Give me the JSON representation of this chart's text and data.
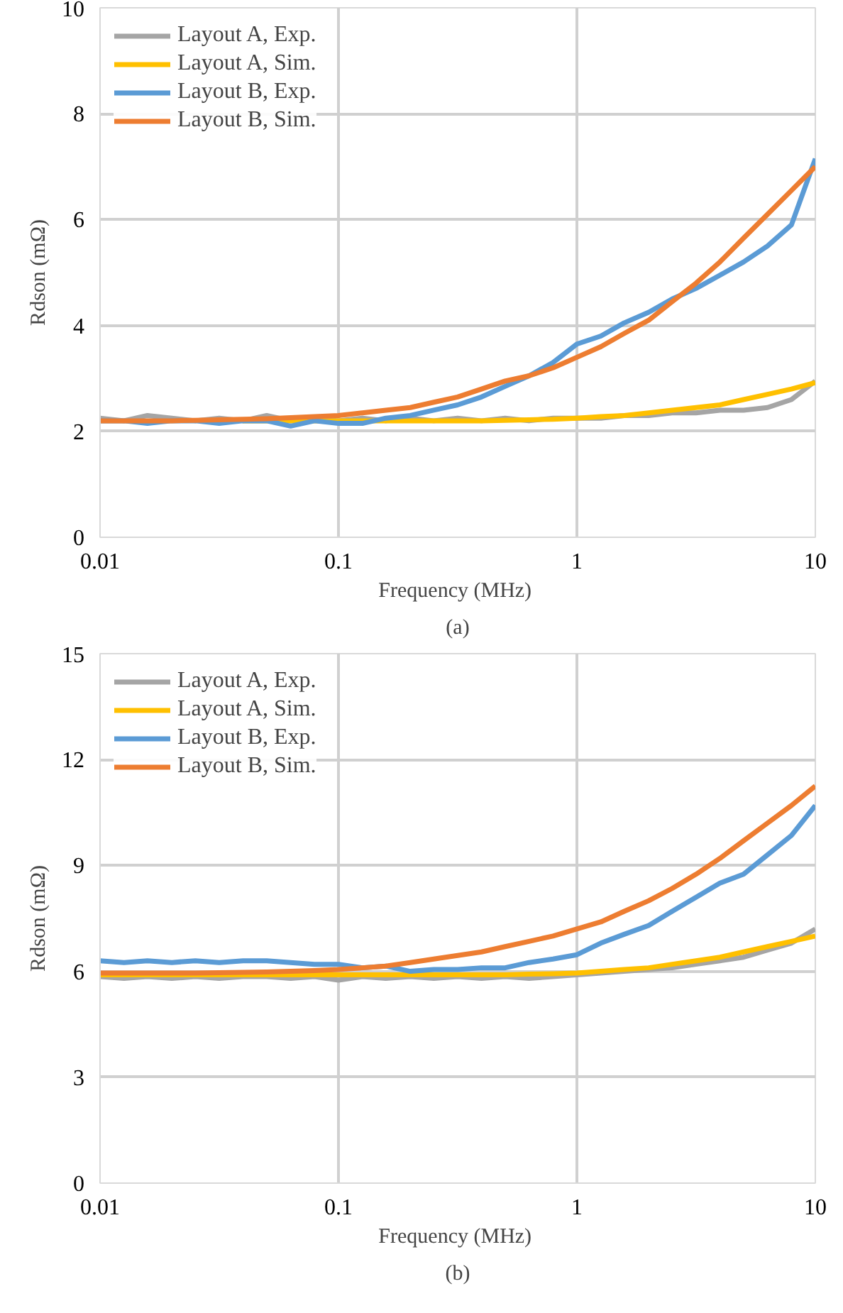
{
  "chart_data": [
    {
      "type": "line",
      "xlabel": "Frequency  (MHz)",
      "ylabel": "Rdson (mΩ)",
      "annotations": [
        "(a)"
      ],
      "x": [
        0.01,
        0.0126,
        0.0158,
        0.02,
        0.0251,
        0.0316,
        0.0398,
        0.05,
        0.063,
        0.0794,
        0.1,
        0.126,
        0.158,
        0.2,
        0.251,
        0.316,
        0.398,
        0.5,
        0.63,
        0.794,
        1,
        1.26,
        1.58,
        2,
        2.51,
        3.16,
        3.98,
        5,
        6.3,
        7.94,
        10
      ],
      "log": "x",
      "xlim": [
        0.01,
        10
      ],
      "xticks": [
        0.01,
        0.1,
        1,
        10
      ],
      "ylim": [
        0,
        10
      ],
      "yticks": [
        0,
        2,
        4,
        6,
        8,
        10
      ],
      "grid": true,
      "legend": "top left",
      "line_style": "solid",
      "marker": "none",
      "series": [
        {
          "name": "Layout A, Exp.",
          "color": "#a5a5a5",
          "values": [
            2.25,
            2.2,
            2.3,
            2.25,
            2.2,
            2.25,
            2.2,
            2.3,
            2.2,
            2.25,
            2.2,
            2.25,
            2.2,
            2.25,
            2.2,
            2.25,
            2.2,
            2.25,
            2.2,
            2.25,
            2.25,
            2.25,
            2.3,
            2.3,
            2.35,
            2.35,
            2.4,
            2.4,
            2.45,
            2.6,
            2.95
          ]
        },
        {
          "name": "Layout A, Sim.",
          "color": "#ffc000",
          "values": [
            null,
            null,
            null,
            null,
            null,
            null,
            2.2,
            2.2,
            2.2,
            2.2,
            2.2,
            2.2,
            2.2,
            2.2,
            2.2,
            2.2,
            2.2,
            2.21,
            2.22,
            2.23,
            2.25,
            2.28,
            2.3,
            2.35,
            2.4,
            2.45,
            2.5,
            2.6,
            2.7,
            2.8,
            2.92
          ]
        },
        {
          "name": "Layout B, Exp.",
          "color": "#5b9bd5",
          "values": [
            2.2,
            2.2,
            2.15,
            2.2,
            2.2,
            2.15,
            2.2,
            2.2,
            2.1,
            2.2,
            2.15,
            2.15,
            2.25,
            2.3,
            2.4,
            2.5,
            2.65,
            2.85,
            3.05,
            3.3,
            3.65,
            3.8,
            4.05,
            4.25,
            4.5,
            4.7,
            4.95,
            5.2,
            5.5,
            5.9,
            7.15
          ]
        },
        {
          "name": "Layout B, Sim.",
          "color": "#ed7d31",
          "values": [
            2.2,
            2.2,
            2.2,
            2.2,
            2.21,
            2.22,
            2.23,
            2.24,
            2.26,
            2.28,
            2.3,
            2.35,
            2.4,
            2.45,
            2.55,
            2.65,
            2.8,
            2.95,
            3.05,
            3.2,
            3.4,
            3.6,
            3.85,
            4.1,
            4.45,
            4.8,
            5.2,
            5.65,
            6.1,
            6.55,
            7.0
          ]
        }
      ]
    },
    {
      "type": "line",
      "xlabel": "Frequency  (MHz)",
      "ylabel": "Rdson (mΩ)",
      "annotations": [
        "(b)"
      ],
      "x": [
        0.01,
        0.0126,
        0.0158,
        0.02,
        0.0251,
        0.0316,
        0.0398,
        0.05,
        0.063,
        0.0794,
        0.1,
        0.126,
        0.158,
        0.2,
        0.251,
        0.316,
        0.398,
        0.5,
        0.63,
        0.794,
        1,
        1.26,
        1.58,
        2,
        2.51,
        3.16,
        3.98,
        5,
        6.3,
        7.94,
        10
      ],
      "log": "x",
      "xlim": [
        0.01,
        10
      ],
      "xticks": [
        0.01,
        0.1,
        1,
        10
      ],
      "ylim": [
        0,
        15
      ],
      "yticks": [
        0,
        3,
        6,
        9,
        12,
        15
      ],
      "grid": true,
      "legend": "top left",
      "line_style": "solid",
      "marker": "none",
      "series": [
        {
          "name": "Layout A, Exp.",
          "color": "#a5a5a5",
          "values": [
            5.85,
            5.8,
            5.85,
            5.8,
            5.85,
            5.8,
            5.85,
            5.85,
            5.8,
            5.85,
            5.75,
            5.85,
            5.8,
            5.85,
            5.8,
            5.85,
            5.8,
            5.85,
            5.8,
            5.85,
            5.9,
            5.95,
            6.0,
            6.05,
            6.1,
            6.2,
            6.3,
            6.4,
            6.6,
            6.8,
            7.2
          ]
        },
        {
          "name": "Layout A, Sim.",
          "color": "#ffc000",
          "values": [
            5.9,
            5.9,
            5.9,
            5.9,
            5.9,
            5.9,
            5.9,
            5.9,
            5.9,
            5.9,
            5.9,
            5.9,
            5.9,
            5.9,
            5.9,
            5.9,
            5.9,
            5.9,
            5.92,
            5.93,
            5.95,
            6.0,
            6.05,
            6.1,
            6.2,
            6.3,
            6.4,
            6.55,
            6.7,
            6.85,
            7.0
          ]
        },
        {
          "name": "Layout B, Exp.",
          "color": "#5b9bd5",
          "values": [
            6.3,
            6.25,
            6.3,
            6.25,
            6.3,
            6.25,
            6.3,
            6.3,
            6.25,
            6.2,
            6.2,
            6.1,
            6.15,
            6.0,
            6.05,
            6.05,
            6.1,
            6.1,
            6.25,
            6.35,
            6.47,
            6.8,
            7.05,
            7.3,
            7.7,
            8.1,
            8.5,
            8.75,
            9.3,
            9.85,
            10.7
          ]
        },
        {
          "name": "Layout B, Sim.",
          "color": "#ed7d31",
          "values": [
            5.95,
            5.95,
            5.95,
            5.95,
            5.95,
            5.96,
            5.97,
            5.98,
            6.0,
            6.02,
            6.05,
            6.1,
            6.15,
            6.25,
            6.35,
            6.45,
            6.55,
            6.7,
            6.85,
            7.0,
            7.2,
            7.4,
            7.7,
            8.0,
            8.35,
            8.75,
            9.2,
            9.7,
            10.2,
            10.7,
            11.25
          ]
        }
      ]
    }
  ]
}
